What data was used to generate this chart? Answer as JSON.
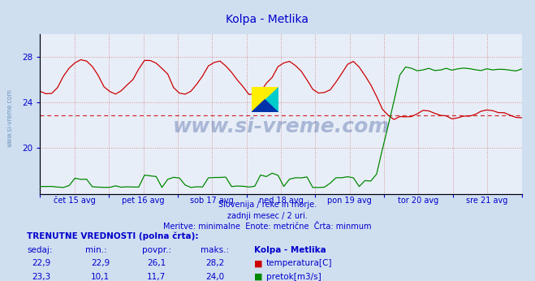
{
  "title": "Kolpa - Metlika",
  "title_color": "#0000cc",
  "bg_color": "#d0dff0",
  "plot_bg_color": "#e8eef8",
  "grid_color": "#d09090",
  "axis_color": "#0000cc",
  "spine_color": "#0000cc",
  "watermark_text": "www.si-vreme.com",
  "watermark_color": "#1a3a8a",
  "x_labels": [
    "čet 15 avg",
    "pet 16 avg",
    "sob 17 avg",
    "ned 18 avg",
    "pon 19 avg",
    "tor 20 avg",
    "sre 21 avg"
  ],
  "yticks": [
    20,
    24,
    28
  ],
  "ylim": [
    16,
    30
  ],
  "xlim": [
    0,
    7
  ],
  "dashed_line_temp": 22.9,
  "temp_color": "#cc0000",
  "flow_color": "#008800",
  "footer_lines": [
    "Slovenija / reke in morje.",
    "zadnji mesec / 2 uri.",
    "Meritve: minimalne  Enote: metrične  Črta: minmum"
  ],
  "table_header": "TRENUTNE VREDNOSTI (polna črta):",
  "col_headers": [
    "sedaj:",
    "min.:",
    "povpr.:",
    "maks.:",
    "Kolpa - Metlika"
  ],
  "row1": [
    "22,9",
    "22,9",
    "26,1",
    "28,2"
  ],
  "row2": [
    "23,3",
    "10,1",
    "11,7",
    "24,0"
  ],
  "legend1_label": "temperatura[C]",
  "legend1_color": "#cc0000",
  "legend2_label": "pretok[m3/s]",
  "legend2_color": "#008800",
  "sidebar_text": "www.si-vreme.com",
  "sidebar_color": "#4477aa"
}
